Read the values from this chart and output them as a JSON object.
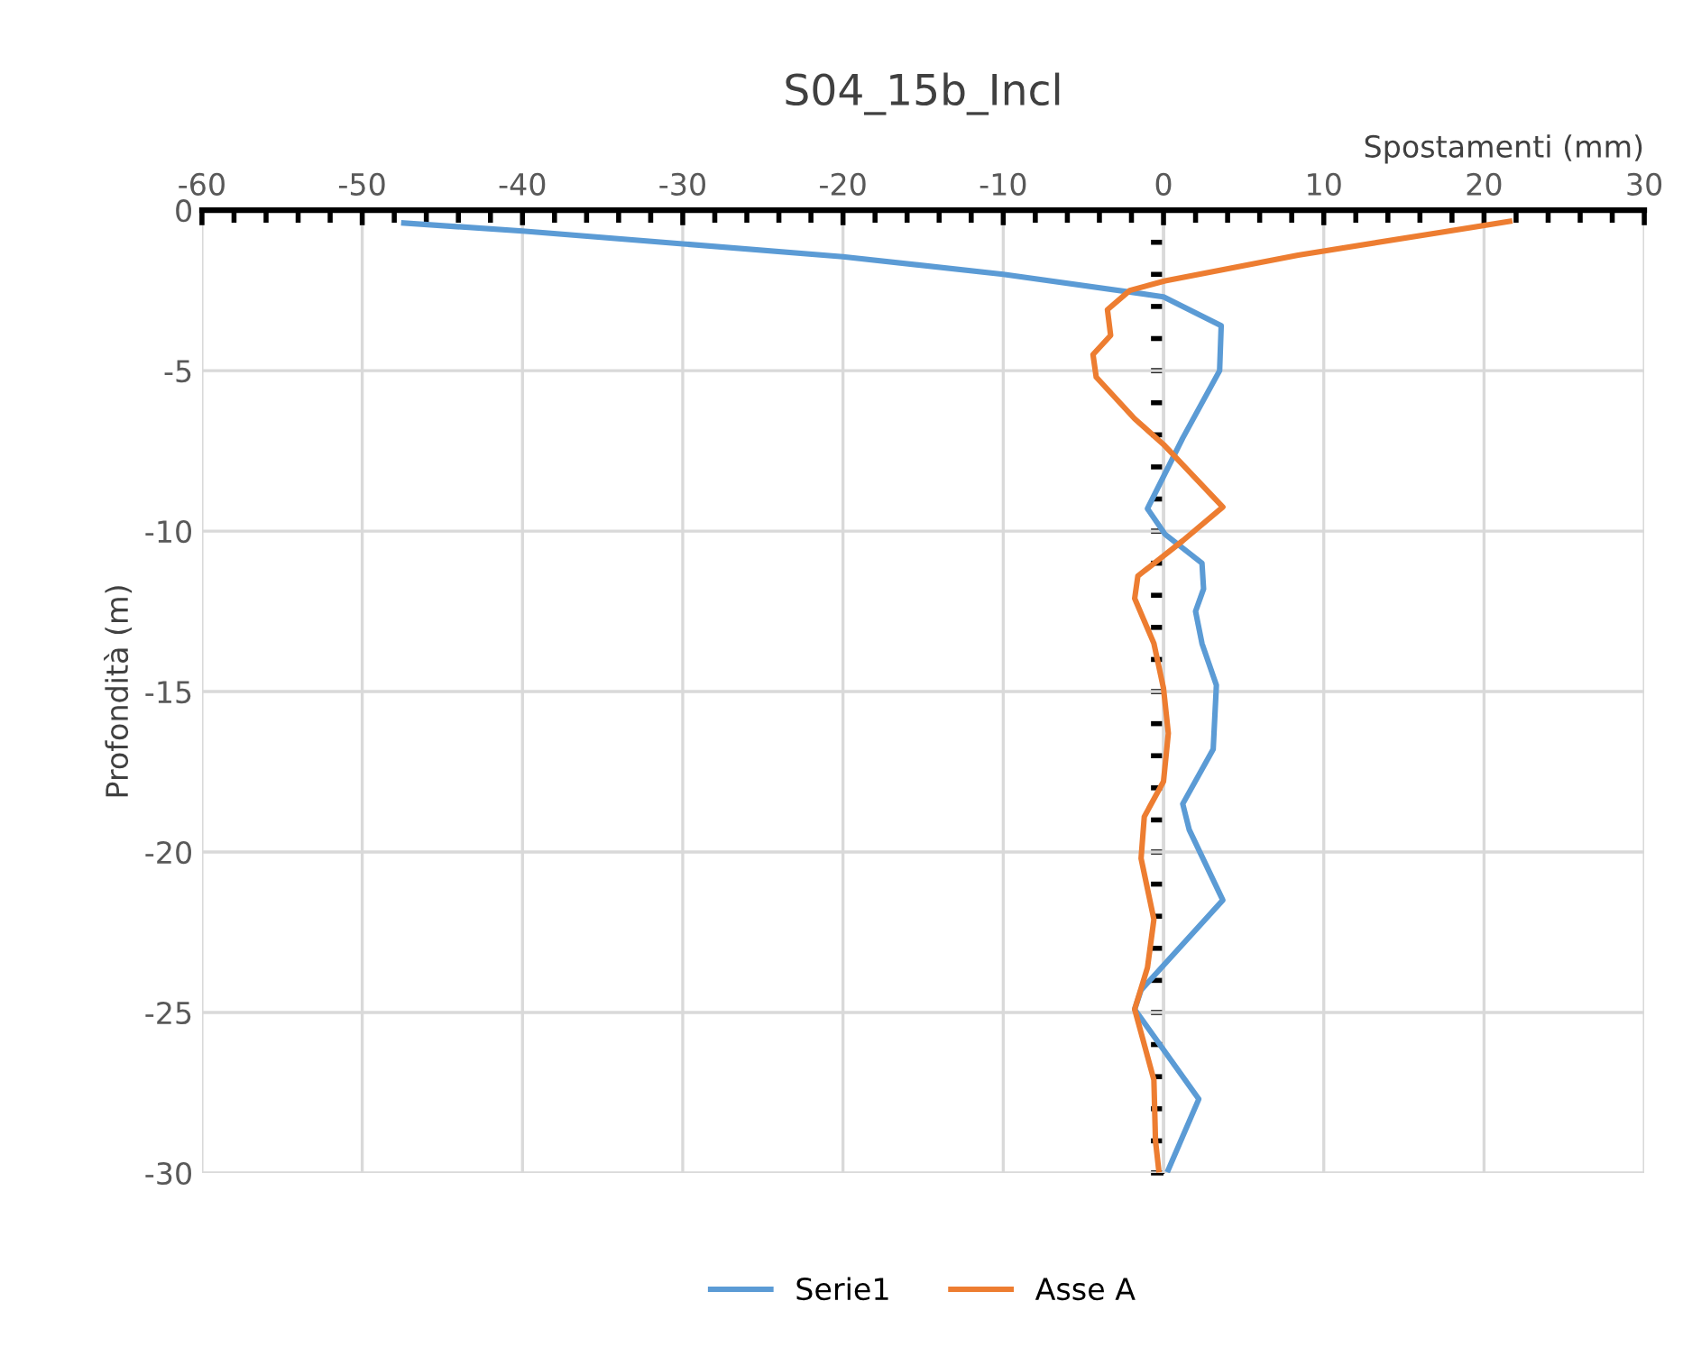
{
  "chart_data": {
    "type": "line",
    "title": "S04_15b_Incl",
    "xlabel": "Spostamenti (mm)",
    "ylabel": "Profondità (m)",
    "xlim": [
      -60,
      30
    ],
    "xticks": [
      -60,
      -50,
      -40,
      -30,
      -20,
      -10,
      0,
      10,
      20,
      30
    ],
    "ylim": [
      -30,
      0
    ],
    "yticks": [
      -30,
      -25,
      -20,
      -15,
      -10,
      -5,
      0
    ],
    "grid": true,
    "legend": "bottom",
    "marker": "none",
    "line_style": "solid",
    "series": [
      {
        "name": "Serie1",
        "color": "#5b9bd5",
        "x": [
          -47.4,
          -40,
          -30,
          -20,
          -10,
          0,
          3.6,
          3.5,
          1.2,
          -1.0,
          0.1,
          2.4,
          2.5,
          2.0,
          2.4,
          3.3,
          3.1,
          1.2,
          1.6,
          3.7,
          -1.4,
          -1.8,
          2.2,
          0.3
        ],
        "values": [
          -0.4,
          -0.65,
          -1.05,
          -1.45,
          -2.0,
          -2.7,
          -3.6,
          -5.0,
          -7.1,
          -9.3,
          -10.1,
          -11.0,
          -11.8,
          -12.5,
          -13.5,
          -14.8,
          -16.8,
          -18.5,
          -19.3,
          -21.5,
          -24.3,
          -24.9,
          -27.7,
          -29.9
        ]
      },
      {
        "name": "Asse A",
        "color": "#ed7d31",
        "x": [
          21.6,
          8.4,
          0.1,
          -2.1,
          -3.5,
          -3.3,
          -4.4,
          -4.2,
          -1.8,
          0,
          3.7,
          1.2,
          -1.6,
          -1.8,
          -0.6,
          0,
          0.3,
          0,
          -1.2,
          -1.4,
          -0.6,
          -1.0,
          -1.8,
          -0.6,
          -0.5,
          -0.3
        ],
        "values": [
          -0.35,
          -1.4,
          -2.2,
          -2.5,
          -3.1,
          -3.9,
          -4.5,
          -5.2,
          -6.5,
          -7.3,
          -9.25,
          -10.3,
          -11.4,
          -12.1,
          -13.5,
          -14.9,
          -16.3,
          -17.8,
          -18.9,
          -20.2,
          -22.1,
          -23.6,
          -24.9,
          -27.1,
          -29.0,
          -29.9
        ]
      }
    ]
  }
}
